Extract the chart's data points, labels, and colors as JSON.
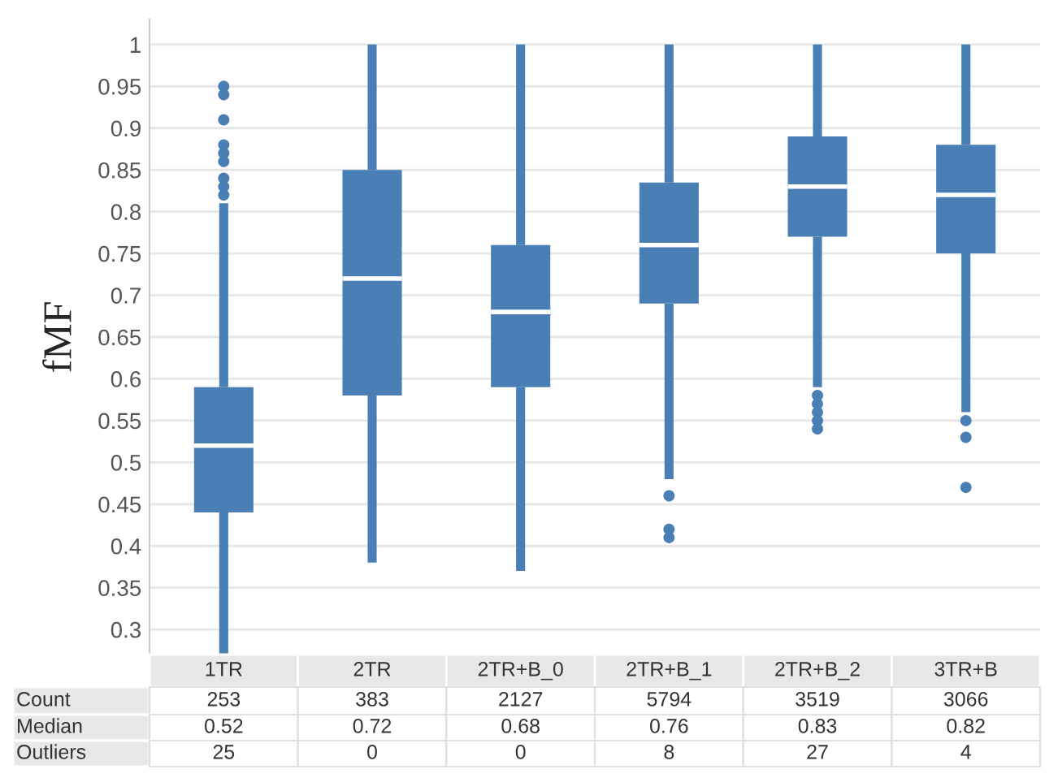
{
  "chart_data": {
    "type": "box",
    "ylabel": "fMF",
    "categories": [
      "1TR",
      "2TR",
      "2TR+B_0",
      "2TR+B_1",
      "2TR+B_2",
      "3TR+B"
    ],
    "series": [
      {
        "color": "#4a7fb5",
        "boxes": [
          {
            "low": 0.27,
            "q1": 0.44,
            "median": 0.52,
            "q3": 0.59,
            "high": 0.81,
            "outliers": [
              0.82,
              0.83,
              0.84,
              0.86,
              0.87,
              0.88,
              0.91,
              0.94,
              0.95
            ]
          },
          {
            "low": 0.38,
            "q1": 0.58,
            "median": 0.72,
            "q3": 0.85,
            "high": 1.0
          },
          {
            "low": 0.37,
            "q1": 0.59,
            "median": 0.68,
            "q3": 0.76,
            "high": 1.0
          },
          {
            "low": 0.48,
            "q1": 0.69,
            "median": 0.76,
            "q3": 0.835,
            "high": 1.0,
            "outliers": [
              0.46,
              0.42,
              0.41
            ]
          },
          {
            "low": 0.59,
            "q1": 0.77,
            "median": 0.83,
            "q3": 0.89,
            "high": 1.0,
            "outliers": [
              0.58,
              0.57,
              0.56,
              0.55,
              0.54
            ]
          },
          {
            "low": 0.56,
            "q1": 0.75,
            "median": 0.82,
            "q3": 0.88,
            "high": 1.0,
            "outliers": [
              0.55,
              0.53,
              0.47
            ]
          }
        ]
      }
    ],
    "ylim": [
      0.27,
      1.03
    ],
    "yticks": [
      0.3,
      0.35,
      0.4,
      0.45,
      0.5,
      0.55,
      0.6,
      0.65,
      0.7,
      0.75,
      0.8,
      0.85,
      0.9,
      0.95,
      1
    ],
    "grid": "y",
    "annotations": [
      "Count",
      "253",
      "383",
      "2127",
      "5794",
      "3519",
      "3066",
      "Median",
      "0.52",
      "0.72",
      "0.68",
      "0.76",
      "0.83",
      "0.82",
      "Outliers",
      "25",
      "0",
      "0",
      "8",
      "27",
      "4"
    ]
  }
}
